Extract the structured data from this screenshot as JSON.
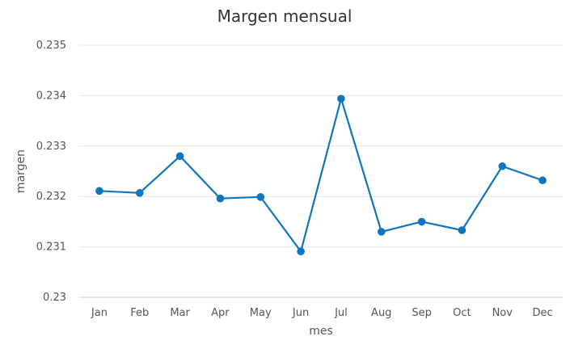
{
  "chart_data": {
    "type": "line",
    "title": "Margen mensual",
    "xlabel": "mes",
    "ylabel": "margen",
    "categories": [
      "Jan",
      "Feb",
      "Mar",
      "Apr",
      "May",
      "Jun",
      "Jul",
      "Aug",
      "Sep",
      "Oct",
      "Nov",
      "Dec"
    ],
    "series": [
      {
        "values": [
          0.23211,
          0.23207,
          0.2328,
          0.23196,
          0.23199,
          0.23091,
          0.23394,
          0.2313,
          0.2315,
          0.23133,
          0.2326,
          0.23232
        ]
      }
    ],
    "ylim": [
      0.23,
      0.235
    ],
    "yticks": [
      "0.23",
      "0.231",
      "0.232",
      "0.233",
      "0.234",
      "0.235"
    ],
    "grid": true,
    "color": "#0f75bc"
  }
}
